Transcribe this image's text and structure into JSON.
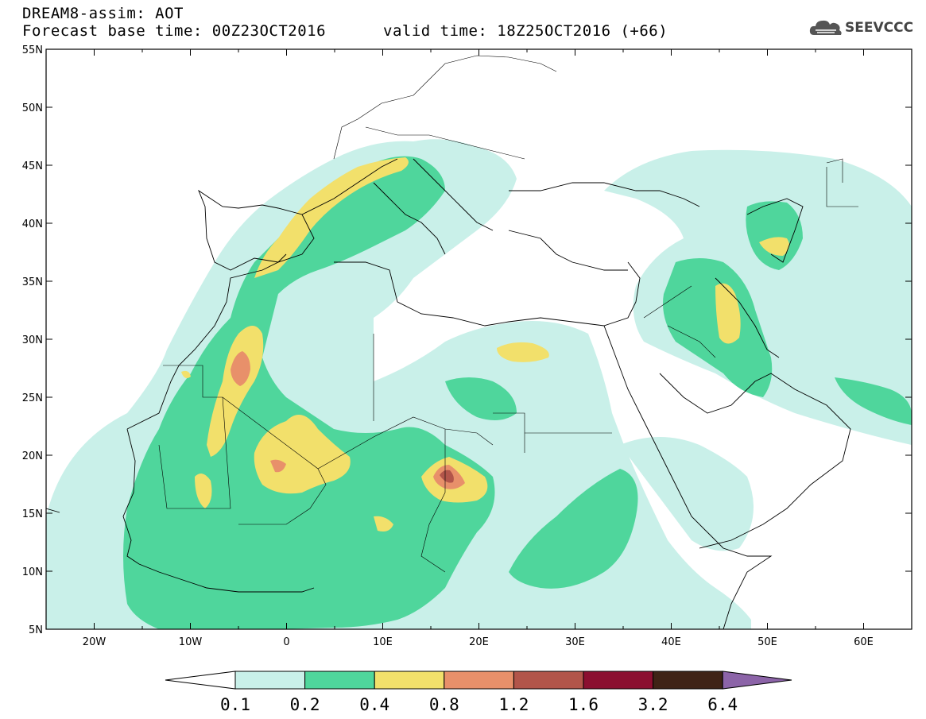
{
  "header": {
    "title": "DREAM8-assim: AOT",
    "base_time": "Forecast base time: 00Z23OCT2016",
    "valid_time": "valid time: 18Z25OCT2016 (+66)"
  },
  "logo": {
    "text": "SEEVCCC",
    "icon": "cloud-icon"
  },
  "map": {
    "region": "North Africa, Europe and the Middle East",
    "lon_range": [
      -25,
      65
    ],
    "lat_range": [
      5,
      55
    ],
    "lon_ticks": [
      "20W",
      "10W",
      "0",
      "10E",
      "20E",
      "30E",
      "40E",
      "50E",
      "60E"
    ],
    "lat_ticks": [
      "5N",
      "10N",
      "15N",
      "20N",
      "25N",
      "30N",
      "35N",
      "40N",
      "45N",
      "50N",
      "55N"
    ],
    "field": "Aerosol optical thickness (AOT)",
    "peak_areas": [
      {
        "lon": 16.5,
        "lat": 18.2,
        "level": "1.6-3.2"
      },
      {
        "lon": -5,
        "lat": 28,
        "level": "0.8-1.2"
      },
      {
        "lon": -1,
        "lat": 19,
        "level": "0.8-1.2"
      }
    ]
  },
  "colorbar": {
    "thresholds": [
      "0.1",
      "0.2",
      "0.4",
      "0.8",
      "1.2",
      "1.6",
      "3.2",
      "6.4"
    ],
    "colors": [
      "#c9f0e9",
      "#4fd69c",
      "#f2e06b",
      "#e8906a",
      "#b2554a",
      "#8b0f30",
      "#3f2316",
      "#8c64a8"
    ],
    "under_color": "#ffffff"
  }
}
